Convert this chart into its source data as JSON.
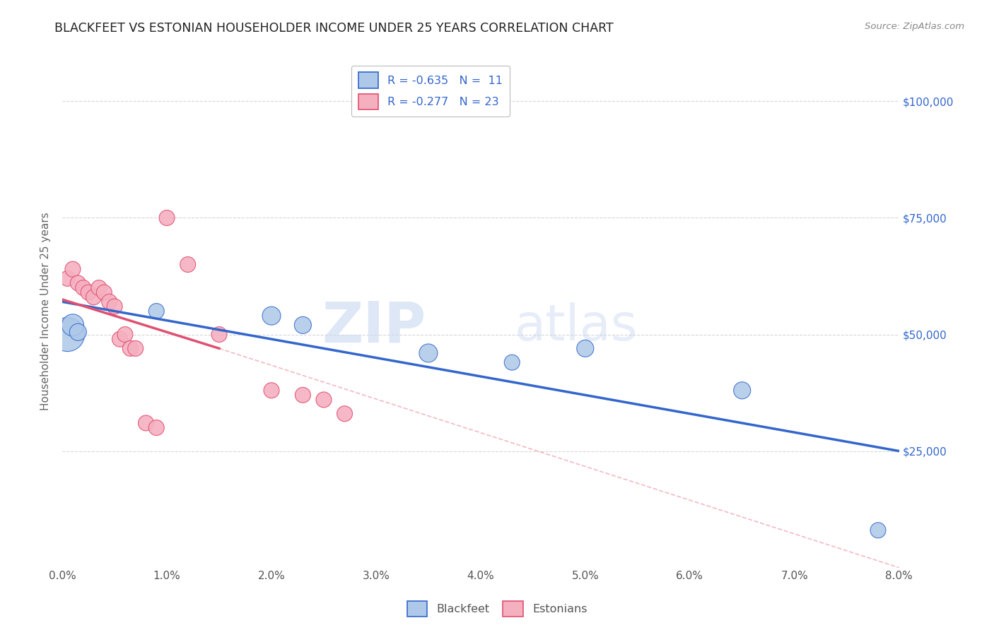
{
  "title": "BLACKFEET VS ESTONIAN HOUSEHOLDER INCOME UNDER 25 YEARS CORRELATION CHART",
  "source": "Source: ZipAtlas.com",
  "ylabel": "Householder Income Under 25 years",
  "xlabel_ticks": [
    "0.0%",
    "1.0%",
    "2.0%",
    "3.0%",
    "4.0%",
    "5.0%",
    "6.0%",
    "7.0%",
    "8.0%"
  ],
  "xlabel_vals": [
    0.0,
    1.0,
    2.0,
    3.0,
    4.0,
    5.0,
    6.0,
    7.0,
    8.0
  ],
  "ylabel_ticks": [
    "$25,000",
    "$50,000",
    "$75,000",
    "$100,000"
  ],
  "ylabel_vals": [
    25000,
    50000,
    75000,
    100000
  ],
  "blackfeet_R": -0.635,
  "blackfeet_N": 11,
  "estonian_R": -0.277,
  "estonian_N": 23,
  "blackfeet_color": "#adc8e8",
  "estonian_color": "#f5b0c0",
  "trend_blue": "#3366cc",
  "trend_pink": "#e05070",
  "blackfeet_x": [
    0.05,
    0.1,
    0.15,
    0.9,
    2.0,
    2.3,
    3.5,
    4.3,
    5.0,
    6.5,
    7.8
  ],
  "blackfeet_y": [
    50000,
    52000,
    50500,
    55000,
    54000,
    52000,
    46000,
    44000,
    47000,
    38000,
    8000
  ],
  "blackfeet_size": [
    1200,
    500,
    300,
    250,
    350,
    300,
    350,
    250,
    300,
    300,
    250
  ],
  "estonian_x": [
    0.05,
    0.1,
    0.15,
    0.2,
    0.25,
    0.3,
    0.35,
    0.4,
    0.45,
    0.5,
    0.55,
    0.6,
    0.65,
    0.7,
    0.8,
    0.9,
    1.0,
    1.2,
    1.5,
    2.0,
    2.3,
    2.5,
    2.7
  ],
  "estonian_y": [
    62000,
    64000,
    61000,
    60000,
    59000,
    58000,
    60000,
    59000,
    57000,
    56000,
    49000,
    50000,
    47000,
    47000,
    31000,
    30000,
    75000,
    65000,
    50000,
    38000,
    37000,
    36000,
    33000
  ],
  "estonian_size": [
    250,
    250,
    250,
    250,
    250,
    250,
    250,
    250,
    250,
    250,
    250,
    250,
    250,
    250,
    250,
    250,
    250,
    250,
    250,
    250,
    250,
    250,
    250
  ],
  "watermark_zip": "ZIP",
  "watermark_atlas": "atlas",
  "xlim": [
    0.0,
    8.0
  ],
  "ylim": [
    0,
    110000
  ],
  "blue_trend_x0": 0.0,
  "blue_trend_y0": 57000,
  "blue_trend_x1": 8.0,
  "blue_trend_y1": 25000,
  "pink_trend_x0": 0.0,
  "pink_trend_y0": 57500,
  "pink_trend_x1": 1.5,
  "pink_trend_y1": 47000,
  "pink_dash_x0": 1.5,
  "pink_dash_y0": 47000,
  "pink_dash_x1": 8.0,
  "pink_dash_y1": 0
}
